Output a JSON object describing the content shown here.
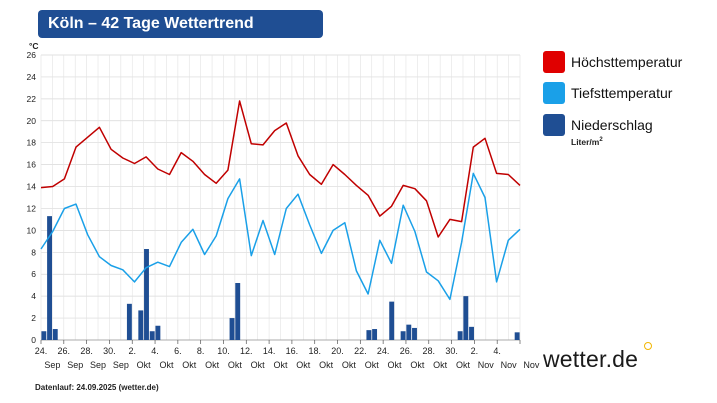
{
  "title": "Köln – 42 Tage Wettertrend",
  "footer": "Datenlauf: 24.09.2025 (wetter.de)",
  "logo": "wetter.de",
  "legend": [
    {
      "label": "Höchsttemperatur",
      "color": "#e00000"
    },
    {
      "label": "Tiefsttemperatur",
      "color": "#1aa0e8"
    },
    {
      "label": "Niederschlag",
      "color": "#1f4e93"
    }
  ],
  "unit": {
    "base": "Liter/m",
    "sup": "2"
  },
  "chart_data": {
    "type": "line",
    "y_unit": "°C",
    "ylim": [
      0,
      26
    ],
    "yticks": [
      0,
      2,
      4,
      6,
      8,
      10,
      12,
      14,
      16,
      18,
      20,
      22,
      24,
      26
    ],
    "x_tick_labels": [
      {
        "day": "24.",
        "month": "Sep"
      },
      {
        "day": "26.",
        "month": "Sep"
      },
      {
        "day": "28.",
        "month": "Sep"
      },
      {
        "day": "30.",
        "month": "Sep"
      },
      {
        "day": "2.",
        "month": "Okt"
      },
      {
        "day": "4.",
        "month": "Okt"
      },
      {
        "day": "6.",
        "month": "Okt"
      },
      {
        "day": "8.",
        "month": "Okt"
      },
      {
        "day": "10.",
        "month": "Okt"
      },
      {
        "day": "12.",
        "month": "Okt"
      },
      {
        "day": "14.",
        "month": "Okt"
      },
      {
        "day": "16.",
        "month": "Okt"
      },
      {
        "day": "18.",
        "month": "Okt"
      },
      {
        "day": "20.",
        "month": "Okt"
      },
      {
        "day": "22.",
        "month": "Okt"
      },
      {
        "day": "24.",
        "month": "Okt"
      },
      {
        "day": "26.",
        "month": "Okt"
      },
      {
        "day": "28.",
        "month": "Okt"
      },
      {
        "day": "30.",
        "month": "Okt"
      },
      {
        "day": "2.",
        "month": "Nov"
      },
      {
        "day": "4.",
        "month": "Nov"
      },
      {
        "day": "",
        "month": "Nov"
      }
    ],
    "series": [
      {
        "name": "Höchsttemperatur",
        "color": "#c00000",
        "values": [
          13.9,
          14.0,
          14.7,
          17.6,
          18.5,
          19.4,
          17.4,
          16.6,
          16.1,
          16.7,
          15.6,
          15.1,
          17.1,
          16.3,
          15.1,
          14.3,
          15.5,
          21.8,
          17.9,
          17.8,
          19.1,
          19.8,
          16.8,
          15.1,
          14.2,
          16.0,
          15.1,
          14.1,
          13.2,
          11.3,
          12.2,
          14.1,
          13.8,
          12.7,
          9.4,
          11.0,
          10.8,
          17.6,
          18.4,
          15.2,
          15.1,
          14.1
        ]
      },
      {
        "name": "Tiefsttemperatur",
        "color": "#1aa0e8",
        "values": [
          8.3,
          9.9,
          12.0,
          12.4,
          9.6,
          7.6,
          6.8,
          6.4,
          5.3,
          6.6,
          7.1,
          6.7,
          8.9,
          10.1,
          7.8,
          9.5,
          12.9,
          14.7,
          7.7,
          10.9,
          7.8,
          12.0,
          13.3,
          10.5,
          7.9,
          10.0,
          10.7,
          6.3,
          4.2,
          9.1,
          7.0,
          12.3,
          9.9,
          6.2,
          5.4,
          3.7,
          8.9,
          15.2,
          13.0,
          5.3,
          9.1,
          10.1
        ]
      },
      {
        "name": "Niederschlag",
        "type": "bar",
        "color": "#1f4e93",
        "values": [
          0.8,
          11.3,
          1.0,
          0,
          0,
          0,
          0,
          0,
          0,
          0,
          0,
          0,
          0,
          0,
          0,
          3.3,
          0,
          2.7,
          8.3,
          0.8,
          1.3,
          0,
          0,
          0,
          0,
          0,
          0,
          0,
          0,
          0,
          0,
          0,
          0,
          2.0,
          5.2,
          0,
          0,
          0,
          0,
          0,
          0,
          0,
          0,
          0,
          0,
          0,
          0,
          0,
          0,
          0,
          0,
          0,
          0,
          0,
          0,
          0,
          0,
          0.9,
          1.0,
          0,
          0,
          3.5,
          0,
          0.8,
          1.4,
          1.1,
          0,
          0,
          0,
          0,
          0,
          0,
          0,
          0.8,
          4.0,
          1.2,
          0,
          0,
          0,
          0,
          0,
          0,
          0,
          0.7
        ]
      }
    ]
  }
}
